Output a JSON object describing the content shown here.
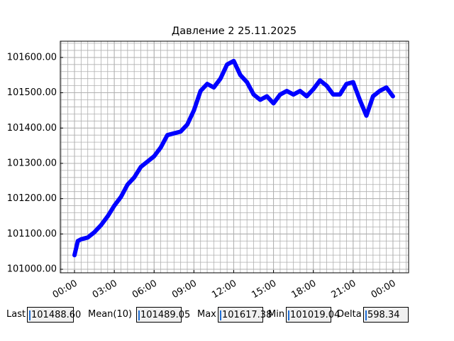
{
  "chart_data": {
    "type": "line",
    "title": "Давление 2 25.11.2025",
    "x": [
      0,
      0.25,
      0.5,
      1,
      1.5,
      2,
      2.5,
      3,
      3.5,
      4,
      4.5,
      5,
      5.5,
      6,
      6.5,
      7,
      7.5,
      8,
      8.5,
      9,
      9.5,
      10,
      10.5,
      11,
      11.5,
      12,
      12.5,
      13,
      13.5,
      14,
      14.5,
      15,
      15.5,
      16,
      16.5,
      17,
      17.5,
      18,
      18.5,
      19,
      19.5,
      20,
      20.5,
      21,
      21.5,
      22,
      22.5,
      23,
      23.5,
      24
    ],
    "series": [
      {
        "color": "#0000ff",
        "values": [
          101040,
          101080,
          101085,
          101090,
          101105,
          101125,
          101150,
          101180,
          101205,
          101240,
          101260,
          101290,
          101305,
          101320,
          101345,
          101380,
          101385,
          101390,
          101410,
          101450,
          101505,
          101525,
          101515,
          101540,
          101580,
          101590,
          101550,
          101530,
          101495,
          101480,
          101490,
          101470,
          101495,
          101505,
          101495,
          101505,
          101490,
          101510,
          101535,
          101520,
          101495,
          101495,
          101525,
          101530,
          101480,
          101435,
          101490,
          101505,
          101515,
          101490
        ]
      }
    ],
    "xlim": [
      -1.07,
      25.18
    ],
    "xticks": [
      {
        "value": 0,
        "label": "00:00"
      },
      {
        "value": 3,
        "label": "03:00"
      },
      {
        "value": 6,
        "label": "06:00"
      },
      {
        "value": 9,
        "label": "09:00"
      },
      {
        "value": 12,
        "label": "12:00"
      },
      {
        "value": 15,
        "label": "15:00"
      },
      {
        "value": 18,
        "label": "18:00"
      },
      {
        "value": 21,
        "label": "21:00"
      },
      {
        "value": 24,
        "label": "00:00"
      }
    ],
    "ylim": [
      100990,
      101646
    ],
    "yticks": [
      {
        "value": 101000,
        "label": "101000.00"
      },
      {
        "value": 101100,
        "label": "101100.00"
      },
      {
        "value": 101200,
        "label": "101200.00"
      },
      {
        "value": 101300,
        "label": "101300.00"
      },
      {
        "value": 101400,
        "label": "101400.00"
      },
      {
        "value": 101500,
        "label": "101500.00"
      },
      {
        "value": 101600,
        "label": "101600.00"
      }
    ],
    "grid": true,
    "minor_grid": true
  },
  "fields": [
    {
      "label": "Last",
      "value": "101488.60"
    },
    {
      "label": "Mean(10)",
      "value": "101489.05"
    },
    {
      "label": "Max",
      "value": "101617.38"
    },
    {
      "label": "Min",
      "value": "101019.04"
    },
    {
      "label": "Delta",
      "value": "598.34"
    }
  ]
}
